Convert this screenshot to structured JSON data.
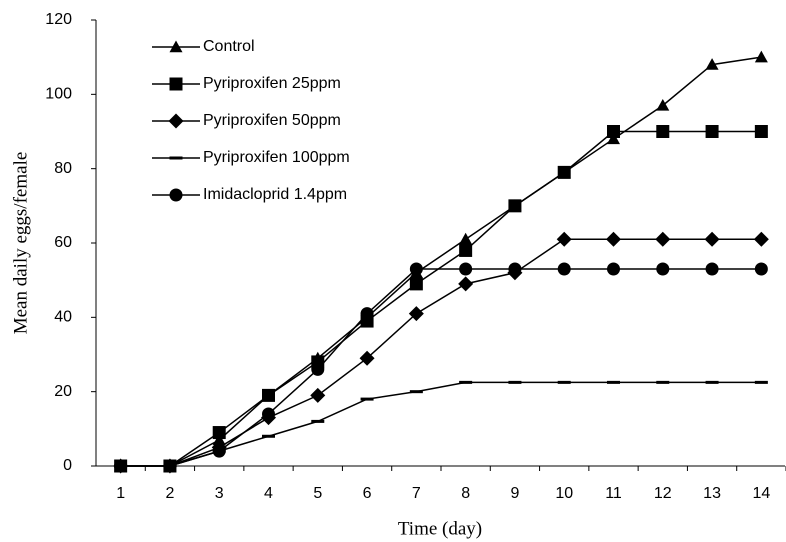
{
  "chart_data": {
    "type": "line",
    "xlabel": "Time (day)",
    "ylabel": "Mean daily eggs/female",
    "categories": [
      1,
      2,
      3,
      4,
      5,
      6,
      7,
      8,
      9,
      10,
      11,
      12,
      13,
      14
    ],
    "ylim": [
      0,
      120
    ],
    "yticks": [
      0,
      20,
      40,
      60,
      80,
      100,
      120
    ],
    "series": [
      {
        "name": "Control",
        "color": "#000000",
        "marker": "triangle",
        "values": [
          0,
          0,
          7,
          19,
          29,
          40,
          52,
          61,
          70,
          79,
          88,
          97,
          108,
          110
        ]
      },
      {
        "name": "Pyriproxifen 25ppm",
        "color": "#000000",
        "marker": "square",
        "values": [
          0,
          0,
          9,
          19,
          28,
          39,
          49,
          58,
          70,
          79,
          90,
          90,
          90,
          90
        ]
      },
      {
        "name": "Pyriproxifen 50ppm",
        "color": "#000000",
        "marker": "diamond",
        "values": [
          0,
          0,
          5,
          13,
          19,
          29,
          41,
          49,
          52,
          61,
          61,
          61,
          61,
          61
        ]
      },
      {
        "name": "Pyriproxifen 100ppm",
        "color": "#000000",
        "marker": "dash",
        "values": [
          0,
          0,
          4,
          8,
          12,
          18,
          20,
          22.5,
          22.5,
          22.5,
          22.5,
          22.5,
          22.5,
          22.5
        ]
      },
      {
        "name": "Imidacloprid 1.4ppm",
        "color": "#000000",
        "marker": "circle",
        "values": [
          0,
          0,
          4,
          14,
          26,
          41,
          53,
          53,
          53,
          53,
          53,
          53,
          53,
          53
        ]
      }
    ],
    "legend": "top-left"
  }
}
